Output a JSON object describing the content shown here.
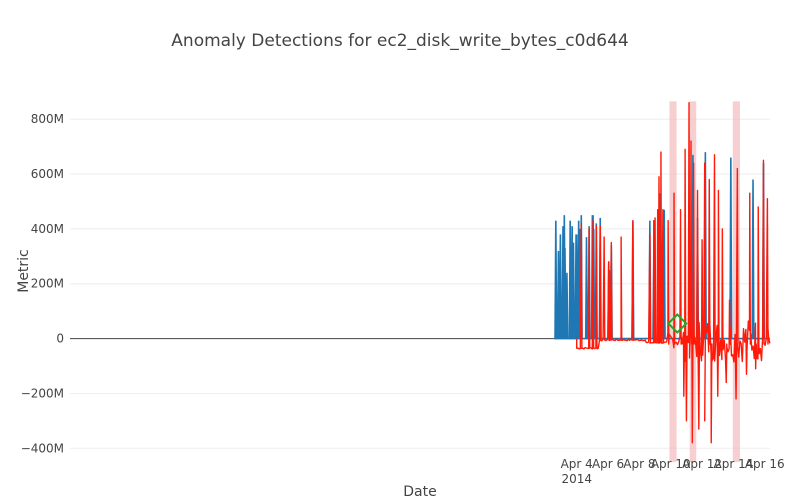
{
  "chart_data": {
    "type": "line",
    "title": "Anomaly Detections for ec2_disk_write_bytes_c0d644",
    "xlabel": "Date",
    "ylabel": "Metric",
    "x_range_days": [
      "2014-03-02T16:00",
      "2014-04-16T08:00"
    ],
    "xlim": [
      "2014-03-02T16:00",
      "2014-04-16T08:00"
    ],
    "ylim": [
      -450000000,
      870000000
    ],
    "y_ticks": [
      -400000000,
      -200000000,
      0,
      200000000,
      400000000,
      600000000,
      800000000
    ],
    "y_tick_labels": [
      "−400M",
      "−200M",
      "0",
      "200M",
      "400M",
      "600M",
      "800M"
    ],
    "x_ticks": [
      "2014-04-04",
      "2014-04-06",
      "2014-04-08",
      "2014-04-10",
      "2014-04-12",
      "2014-04-14",
      "2014-04-16"
    ],
    "x_tick_labels": [
      "Apr 4",
      "Apr 6",
      "Apr 8",
      "Apr 10",
      "Apr 12",
      "Apr 14",
      "Apr 16"
    ],
    "x_tick_sublabel": "2014",
    "grid": true,
    "series": [
      {
        "name": "",
        "color": "#1f77b4",
        "style": "spikes",
        "baseline": 0,
        "points": [
          [
            "2014-04-02T16:00",
            430000000
          ],
          [
            "2014-04-02T20:00",
            320000000
          ],
          [
            "2014-04-02T23:00",
            380000000
          ],
          [
            "2014-04-03T03:00",
            410000000
          ],
          [
            "2014-04-03T05:00",
            450000000
          ],
          [
            "2014-04-03T06:00",
            330000000
          ],
          [
            "2014-04-03T09:00",
            240000000
          ],
          [
            "2014-04-03T14:00",
            430000000
          ],
          [
            "2014-04-03T17:00",
            410000000
          ],
          [
            "2014-04-03T19:00",
            350000000
          ],
          [
            "2014-04-03T23:00",
            380000000
          ],
          [
            "2014-04-04T00:00",
            380000000
          ],
          [
            "2014-04-04T03:00",
            430000000
          ],
          [
            "2014-04-04T04:00",
            280000000
          ],
          [
            "2014-04-04T05:00",
            400000000
          ],
          [
            "2014-04-04T07:00",
            450000000
          ],
          [
            "2014-04-04T15:00",
            370000000
          ],
          [
            "2014-04-04T19:00",
            410000000
          ],
          [
            "2014-04-05T00:00",
            450000000
          ],
          [
            "2014-04-05T01:00",
            450000000
          ],
          [
            "2014-04-05T02:00",
            400000000
          ],
          [
            "2014-04-05T06:00",
            420000000
          ],
          [
            "2014-04-05T12:00",
            440000000
          ],
          [
            "2014-04-06T01:00",
            280000000
          ],
          [
            "2014-04-06T02:00",
            250000000
          ],
          [
            "2014-04-06T05:00",
            340000000
          ],
          [
            "2014-04-07T14:00",
            430000000
          ],
          [
            "2014-04-08T16:00",
            430000000
          ],
          [
            "2014-04-08T22:00",
            300000000
          ],
          [
            "2014-04-09T05:00",
            430000000
          ],
          [
            "2014-04-09T08:00",
            530000000
          ],
          [
            "2014-04-09T14:00",
            470000000
          ],
          [
            "2014-04-11T10:00",
            670000000
          ],
          [
            "2014-04-11T17:00",
            440000000
          ],
          [
            "2014-04-12T05:00",
            680000000
          ],
          [
            "2014-04-13T20:00",
            660000000
          ],
          [
            "2014-04-15T06:00",
            580000000
          ],
          [
            "2014-04-15T22:00",
            640000000
          ]
        ]
      },
      {
        "name": "",
        "color": "#ff1a0a",
        "style": "noisy-line",
        "regions": [
          {
            "from": "2014-04-04T00:00",
            "to": "2014-04-05T10:00",
            "level": -35000000
          },
          {
            "from": "2014-04-05T10:00",
            "to": "2014-04-08T10:00",
            "level": -5000000
          },
          {
            "from": "2014-04-08T10:00",
            "to": "2014-04-09T18:00",
            "level": -15000000
          },
          {
            "from": "2014-04-09T18:00",
            "to": "2014-04-16T08:00",
            "level": -20000000
          }
        ],
        "spikes": [
          [
            "2014-04-04T07:00",
            420000000
          ],
          [
            "2014-04-04T19:00",
            400000000
          ],
          [
            "2014-04-05T01:00",
            430000000
          ],
          [
            "2014-04-05T06:00",
            410000000
          ],
          [
            "2014-04-05T12:00",
            410000000
          ],
          [
            "2014-04-05T18:00",
            370000000
          ],
          [
            "2014-04-06T01:00",
            280000000
          ],
          [
            "2014-04-06T05:00",
            350000000
          ],
          [
            "2014-04-06T20:00",
            370000000
          ],
          [
            "2014-04-07T14:00",
            430000000
          ],
          [
            "2014-04-08T16:00",
            380000000
          ],
          [
            "2014-04-08T22:00",
            430000000
          ],
          [
            "2014-04-09T00:00",
            440000000
          ],
          [
            "2014-04-09T04:00",
            470000000
          ],
          [
            "2014-04-09T06:00",
            590000000
          ],
          [
            "2014-04-09T09:00",
            680000000
          ],
          [
            "2014-04-09T12:00",
            470000000
          ],
          [
            "2014-04-09T20:00",
            430000000
          ],
          [
            "2014-04-10T05:00",
            530000000
          ],
          [
            "2014-04-10T15:00",
            470000000
          ],
          [
            "2014-04-10T22:00",
            690000000
          ],
          [
            "2014-04-11T04:00",
            860000000
          ],
          [
            "2014-04-11T07:00",
            720000000
          ],
          [
            "2014-04-11T11:00",
            640000000
          ],
          [
            "2014-04-11T17:00",
            540000000
          ],
          [
            "2014-04-12T00:00",
            360000000
          ],
          [
            "2014-04-12T04:00",
            640000000
          ],
          [
            "2014-04-12T11:00",
            580000000
          ],
          [
            "2014-04-12T19:00",
            670000000
          ],
          [
            "2014-04-13T01:00",
            540000000
          ],
          [
            "2014-04-13T07:00",
            400000000
          ],
          [
            "2014-04-13T18:00",
            140000000
          ],
          [
            "2014-04-14T06:00",
            620000000
          ],
          [
            "2014-04-15T01:00",
            530000000
          ],
          [
            "2014-04-15T14:00",
            480000000
          ],
          [
            "2014-04-15T22:00",
            650000000
          ],
          [
            "2014-04-16T04:00",
            510000000
          ]
        ],
        "dips": [
          [
            "2014-04-10T20:00",
            -210000000
          ],
          [
            "2014-04-11T00:00",
            -300000000
          ],
          [
            "2014-04-11T09:00",
            -380000000
          ],
          [
            "2014-04-11T19:00",
            -330000000
          ],
          [
            "2014-04-12T04:00",
            -300000000
          ],
          [
            "2014-04-12T14:00",
            -380000000
          ],
          [
            "2014-04-13T00:00",
            -210000000
          ],
          [
            "2014-04-13T13:00",
            -160000000
          ],
          [
            "2014-04-14T04:00",
            -220000000
          ],
          [
            "2014-04-14T20:00",
            -130000000
          ],
          [
            "2014-04-15T10:00",
            -110000000
          ]
        ]
      }
    ],
    "anomaly_windows": [
      {
        "from": "2014-04-09T22:00",
        "to": "2014-04-10T09:00",
        "color": "#f4b6b8"
      },
      {
        "from": "2014-04-11T05:00",
        "to": "2014-04-11T15:00",
        "color": "#f4b6b8"
      },
      {
        "from": "2014-04-13T23:00",
        "to": "2014-04-14T10:00",
        "color": "#f4b6b8"
      }
    ],
    "marker": {
      "shape": "diamond-open",
      "color": "#2ca02c",
      "x": "2014-04-10T10:00",
      "y": 55000000
    }
  }
}
